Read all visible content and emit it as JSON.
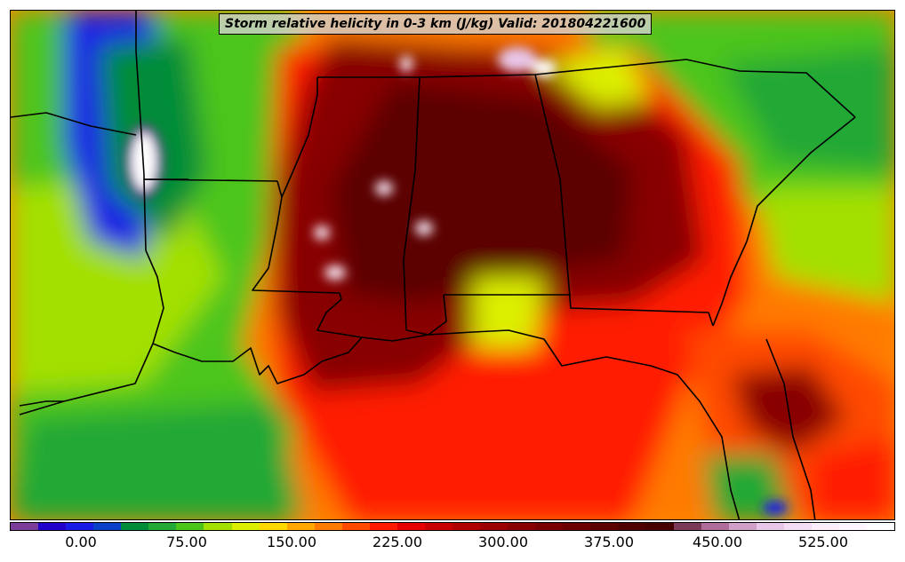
{
  "title": "Storm relative helicity in 0-3 km (J/kg) Valid: 201804221600",
  "colorbar": {
    "colors": [
      "#7a3d9a",
      "#2200cc",
      "#1a1ae6",
      "#0a40c8",
      "#008c38",
      "#24a836",
      "#4cc51a",
      "#a3e000",
      "#dcef00",
      "#ffd800",
      "#ffa600",
      "#ff7a00",
      "#ff4a00",
      "#ff1a00",
      "#e60000",
      "#c80000",
      "#b00000",
      "#9c0000",
      "#880000",
      "#780000",
      "#6a0000",
      "#5c0000",
      "#500000",
      "#460000",
      "#7a3a58",
      "#b06d9a",
      "#d0a0c8",
      "#e8c6e8",
      "#f5dcf5",
      "#fbeefb",
      "#fff5ff",
      "#ffffff"
    ],
    "ticks": [
      "0.00",
      "75.00",
      "150.00",
      "225.00",
      "300.00",
      "375.00",
      "450.00",
      "525.00"
    ]
  },
  "map": {
    "region": "Southeastern United States",
    "field": "storm-relative-helicity",
    "base_color": "#ff8800"
  }
}
